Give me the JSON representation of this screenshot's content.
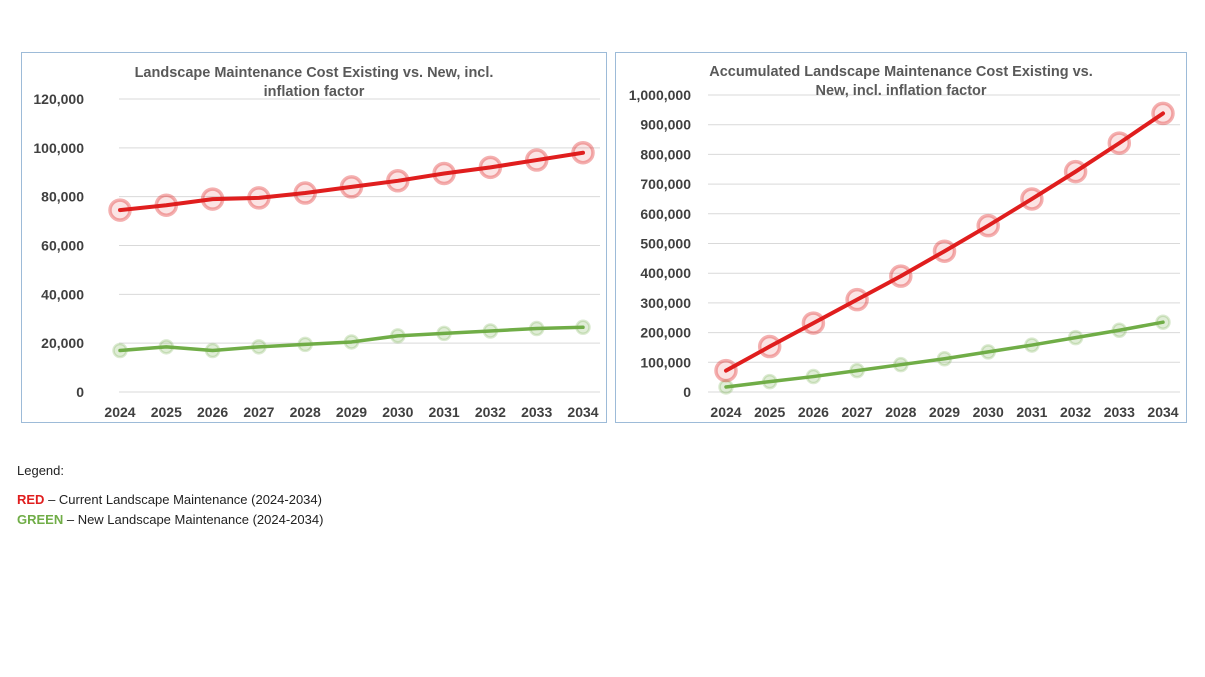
{
  "chart_data": [
    {
      "type": "line",
      "title_lines": [
        "Landscape Maintenance Cost Existing vs. New, incl.",
        "inflation factor"
      ],
      "categories": [
        "2024",
        "2025",
        "2026",
        "2027",
        "2028",
        "2029",
        "2030",
        "2031",
        "2032",
        "2033",
        "2034"
      ],
      "ylim": [
        0,
        120000
      ],
      "yticks": [
        0,
        20000,
        40000,
        60000,
        80000,
        100000,
        120000
      ],
      "ytick_labels": [
        "0",
        "20,000",
        "40,000",
        "60,000",
        "80,000",
        "100,000",
        "120,000"
      ],
      "series": [
        {
          "name": "Current Landscape Maintenance",
          "color": "#e01e1e",
          "values": [
            74500,
            76500,
            79000,
            79500,
            81500,
            84000,
            86500,
            89500,
            92000,
            95000,
            98000
          ]
        },
        {
          "name": "New Landscape Maintenance",
          "color": "#70ad47",
          "values": [
            17000,
            18500,
            17000,
            18500,
            19500,
            20500,
            23000,
            24000,
            25000,
            26000,
            26500
          ]
        }
      ],
      "grid": true
    },
    {
      "type": "line",
      "title_lines": [
        "Accumulated Landscape Maintenance Cost Existing vs.",
        "New, incl. inflation factor"
      ],
      "categories": [
        "2024",
        "2025",
        "2026",
        "2027",
        "2028",
        "2029",
        "2030",
        "2031",
        "2032",
        "2033",
        "2034"
      ],
      "ylim": [
        0,
        1000000
      ],
      "yticks": [
        0,
        100000,
        200000,
        300000,
        400000,
        500000,
        600000,
        700000,
        800000,
        900000,
        1000000
      ],
      "ytick_labels": [
        "0",
        "100,000",
        "200,000",
        "300,000",
        "400,000",
        "500,000",
        "600,000",
        "700,000",
        "800,000",
        "900,000",
        "1,000,000"
      ],
      "series": [
        {
          "name": "Current Landscape Maintenance",
          "color": "#e01e1e",
          "values": [
            72000,
            153000,
            232000,
            311000,
            390000,
            474000,
            560000,
            650000,
            742000,
            838000,
            938000
          ]
        },
        {
          "name": "New Landscape Maintenance",
          "color": "#70ad47",
          "values": [
            17000,
            35000,
            52000,
            72000,
            92000,
            112000,
            135000,
            158000,
            183000,
            208000,
            235000
          ]
        }
      ],
      "grid": true
    }
  ],
  "legend": {
    "title": "Legend:",
    "items": [
      {
        "key": "RED",
        "text": " – Current Landscape Maintenance (2024-2034)",
        "color": "#e01e1e"
      },
      {
        "key": "GREEN",
        "text": " – New Landscape Maintenance (2024-2034)",
        "color": "#70ad47"
      }
    ]
  }
}
